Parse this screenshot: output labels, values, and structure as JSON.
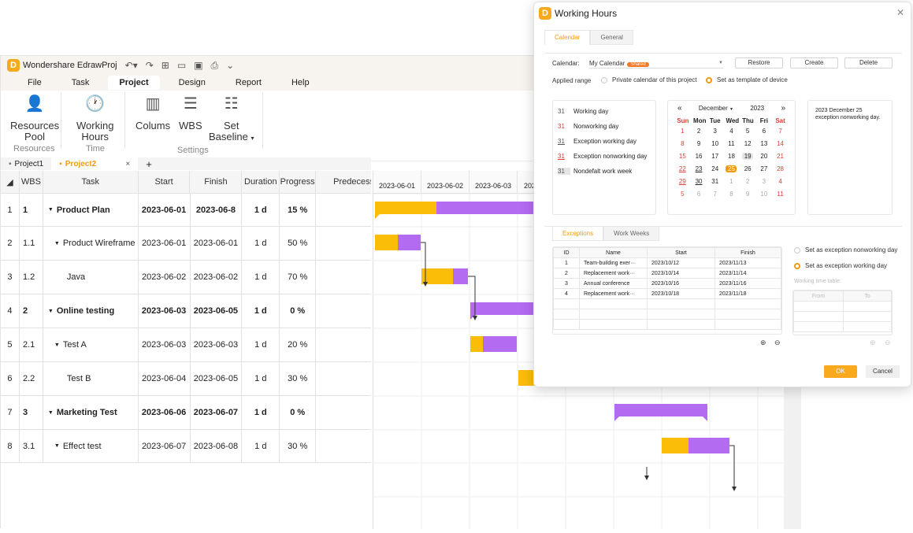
{
  "app": {
    "title": "Wondershare EdrawProj",
    "menu": [
      "File",
      "Task",
      "Project",
      "Design",
      "Report",
      "Help"
    ],
    "active_menu": "Project",
    "ribbon": {
      "resources_pool_1": "Resources",
      "resources_pool_2": "Pool",
      "working_hours_1": "Working",
      "working_hours_2": "Hours",
      "columns": "Colums",
      "wbs": "WBS",
      "set_baseline_1": "Set",
      "set_baseline_2": "Baseline",
      "group_resources": "Resources",
      "group_time": "Time",
      "group_settings": "Settings"
    },
    "project_tabs": [
      "Project1",
      "Project2"
    ],
    "add_tab": "+",
    "close_tab": "×"
  },
  "grid": {
    "headers": [
      "WBS",
      "Task",
      "Start",
      "Finish",
      "Duration",
      "Progress",
      "Predecesso"
    ],
    "rows": [
      {
        "idx": "1",
        "wbs": "1",
        "task": "Product Plan",
        "start": "2023-06-01",
        "finish": "2023-06-8",
        "dur": "1 d",
        "prog": "15 %",
        "bold": true,
        "expand": true,
        "indent": 0
      },
      {
        "idx": "2",
        "wbs": "1.1",
        "task": "Product Wireframe",
        "start": "2023-06-01",
        "finish": "2023-06-01",
        "dur": "1 d",
        "prog": "50 %",
        "bold": false,
        "expand": true,
        "indent": 1
      },
      {
        "idx": "3",
        "wbs": "1.2",
        "task": "Java",
        "start": "2023-06-02",
        "finish": "2023-06-02",
        "dur": "1 d",
        "prog": "70 %",
        "bold": false,
        "expand": false,
        "indent": 2
      },
      {
        "idx": "4",
        "wbs": "2",
        "task": "Online testing",
        "start": "2023-06-03",
        "finish": "2023-06-05",
        "dur": "1 d",
        "prog": "0 %",
        "bold": true,
        "expand": true,
        "indent": 0
      },
      {
        "idx": "5",
        "wbs": "2.1",
        "task": "Test A",
        "start": "2023-06-03",
        "finish": "2023-06-03",
        "dur": "1 d",
        "prog": "20 %",
        "bold": false,
        "expand": true,
        "indent": 1
      },
      {
        "idx": "6",
        "wbs": "2.2",
        "task": "Test B",
        "start": "2023-06-04",
        "finish": "2023-06-05",
        "dur": "1 d",
        "prog": "30 %",
        "bold": false,
        "expand": false,
        "indent": 2
      },
      {
        "idx": "7",
        "wbs": "3",
        "task": "Marketing Test",
        "start": "2023-06-06",
        "finish": "2023-06-07",
        "dur": "1 d",
        "prog": "0 %",
        "bold": true,
        "expand": true,
        "indent": 0
      },
      {
        "idx": "8",
        "wbs": "3.1",
        "task": "Effect test",
        "start": "2023-06-07",
        "finish": "2023-06-08",
        "dur": "1 d",
        "prog": "30 %",
        "bold": false,
        "expand": true,
        "indent": 1
      }
    ]
  },
  "gantt": {
    "dates": [
      "2023-06-01",
      "2023-06-02",
      "2023-06-03",
      "202"
    ],
    "colors": {
      "done": "#fbbd08",
      "remain": "#b36bf2",
      "milestone": "#1a8cff"
    }
  },
  "dialog": {
    "title": "Working Hours",
    "tabs": [
      "Calendar",
      "General"
    ],
    "calendar_label": "Calendar:",
    "calendar_value": "My Calendar",
    "shared_badge": "Shared",
    "restore": "Restore",
    "create": "Create",
    "delete": "Delete",
    "applied_range": "Applied range",
    "range_private": "Private calendar of this project",
    "range_template": "Set as template of device",
    "legend": [
      {
        "num": "31",
        "label": "Working day",
        "style": "normal"
      },
      {
        "num": "31",
        "label": "Nonworking day",
        "style": "red"
      },
      {
        "num": "31",
        "label": "Exception working day",
        "style": "underline"
      },
      {
        "num": "31",
        "label": "Exception nonworking day",
        "style": "red-underline"
      },
      {
        "num": "31",
        "label": "Nondefalt work week",
        "style": "grey-bg"
      }
    ],
    "month": "December",
    "year": "2023",
    "prev": "«",
    "next": "»",
    "weekdays": [
      "Sun",
      "Mon",
      "Tue",
      "Wed",
      "Thu",
      "Fri",
      "Sat"
    ],
    "weeks": [
      [
        "1",
        "2",
        "3",
        "4",
        "5",
        "6",
        "7"
      ],
      [
        "8",
        "9",
        "10",
        "11",
        "12",
        "13",
        "14"
      ],
      [
        "15",
        "16",
        "17",
        "18",
        "19",
        "20",
        "21"
      ],
      [
        "22",
        "23",
        "24",
        "25",
        "26",
        "27",
        "28"
      ],
      [
        "29",
        "30",
        "31",
        "1",
        "2",
        "3",
        "4"
      ],
      [
        "5",
        "6",
        "7",
        "8",
        "9",
        "10",
        "11"
      ]
    ],
    "note": "2023 December 25 exception nonworking day.",
    "subtabs": [
      "Exceptions",
      "Work Weeks"
    ],
    "exc_headers": [
      "ID",
      "Name",
      "Start",
      "Finish"
    ],
    "exceptions": [
      {
        "id": "1",
        "name": "Team-building exer···",
        "start": "2023/10/12",
        "finish": "2023/11/13"
      },
      {
        "id": "2",
        "name": "Replacement work···",
        "start": "2023/10/14",
        "finish": "2023/11/14"
      },
      {
        "id": "3",
        "name": "Annual conference",
        "start": "2023/10/16",
        "finish": "2023/11/16"
      },
      {
        "id": "4",
        "name": "Replacement work···",
        "start": "2023/10/18",
        "finish": "2023/11/18"
      }
    ],
    "opt_nonworking": "Set as exception nonworking day",
    "opt_working": "Set as exception working day",
    "working_time_table": "Working time table:",
    "wt_from": "From",
    "wt_to": "To",
    "ok": "OK",
    "cancel": "Cancel"
  }
}
